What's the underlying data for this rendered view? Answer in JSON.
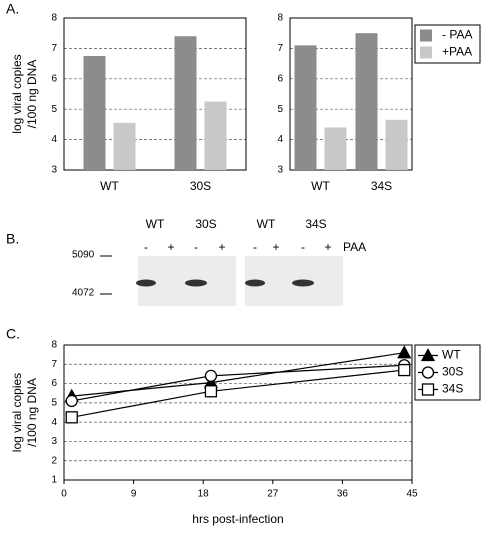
{
  "panel_labels": [
    "A.",
    "B.",
    "C."
  ],
  "chart_data": [
    {
      "type": "bar",
      "categories": [
        "WT",
        "30S"
      ],
      "ylabel": [
        "log viral copies",
        "/100 ng DNA"
      ],
      "series": [
        {
          "color": "#8c8c8c",
          "values": [
            6.75,
            7.4
          ]
        },
        {
          "color": "#c8c8c8",
          "values": [
            4.55,
            5.25
          ]
        }
      ],
      "ylim": [
        3,
        8
      ],
      "yticks": [
        3,
        4,
        5,
        6,
        7,
        8
      ],
      "grid": true
    },
    {
      "type": "bar",
      "categories": [
        "WT",
        "34S"
      ],
      "series": [
        {
          "name": "- PAA",
          "color": "#8c8c8c",
          "values": [
            7.1,
            7.5
          ]
        },
        {
          "name": "+PAA",
          "color": "#c8c8c8",
          "values": [
            4.4,
            4.65
          ]
        }
      ],
      "ylim": [
        3,
        8
      ],
      "yticks": [
        3,
        4,
        5,
        6,
        7,
        8
      ],
      "grid": true,
      "legend": "right"
    },
    {
      "type": "line",
      "xlabel": "hrs post-infection",
      "ylabel": [
        "log viral copies",
        "/100 ng DNA"
      ],
      "series": [
        {
          "name": "WT",
          "marker": "triangle",
          "color": "#000000",
          "x": [
            1,
            19,
            44
          ],
          "values": [
            5.35,
            6.05,
            7.6
          ]
        },
        {
          "name": "30S",
          "marker": "circle",
          "color": "#000000",
          "x": [
            1,
            19,
            44
          ],
          "values": [
            5.1,
            6.4,
            6.95
          ]
        },
        {
          "name": "34S",
          "marker": "square",
          "color": "#000000",
          "x": [
            1,
            19,
            44
          ],
          "values": [
            4.25,
            5.6,
            6.7
          ]
        }
      ],
      "xlim": [
        0,
        45
      ],
      "xticks": [
        0,
        9,
        18,
        27,
        36,
        45
      ],
      "ylim": [
        1,
        8
      ],
      "yticks": [
        1,
        2,
        3,
        4,
        5,
        6,
        7,
        8
      ],
      "grid": true,
      "legend": "right"
    }
  ],
  "gel": {
    "lanes": [
      "WT",
      "30S",
      "WT",
      "34S"
    ],
    "treatment": [
      "-",
      "+",
      "-",
      "+",
      "-",
      "+",
      "-",
      "+"
    ],
    "treatment_label": "PAA",
    "markers": [
      "5090",
      "4072"
    ]
  }
}
